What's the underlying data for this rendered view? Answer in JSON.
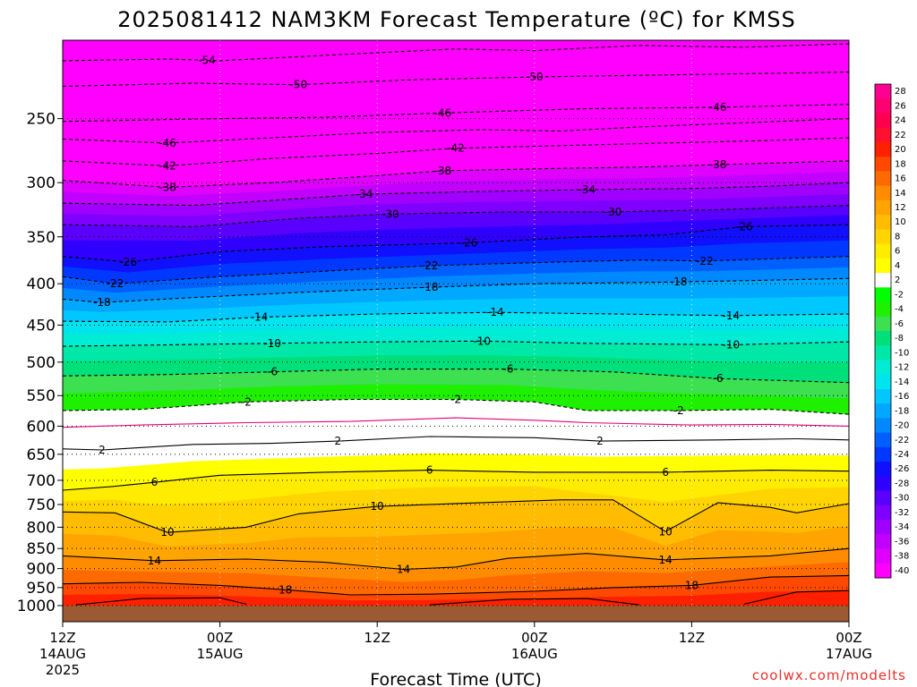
{
  "chart_data": {
    "type": "heatmap",
    "title": "2025081412 NAM3KM Forecast Temperature (ºC) for KMSS",
    "xlabel": "Forecast Time (UTC)",
    "credit": "coolwx.com/modelts",
    "x_ticks": [
      {
        "hour": 0,
        "l1": "12Z",
        "l2": "14AUG",
        "l3": "2025"
      },
      {
        "hour": 12,
        "l1": "00Z",
        "l2": "15AUG",
        "l3": ""
      },
      {
        "hour": 24,
        "l1": "12Z",
        "l2": "",
        "l3": ""
      },
      {
        "hour": 36,
        "l1": "00Z",
        "l2": "16AUG",
        "l3": ""
      },
      {
        "hour": 48,
        "l1": "12Z",
        "l2": "",
        "l3": ""
      },
      {
        "hour": 60,
        "l1": "00Z",
        "l2": "17AUG",
        "l3": ""
      }
    ],
    "x_range_hours": [
      0,
      60
    ],
    "pressure_levels": [
      250,
      300,
      350,
      400,
      450,
      500,
      550,
      600,
      650,
      700,
      750,
      800,
      850,
      900,
      950,
      1000
    ],
    "y_range_hPa": [
      200,
      1000
    ],
    "y_scale": "log-pressure",
    "grid": "dotted",
    "colorbar": {
      "labels": [
        "28",
        "26",
        "24",
        "22",
        "20",
        "18",
        "16",
        "14",
        "12",
        "10",
        "8",
        "6",
        "4",
        "2",
        "-2",
        "-4",
        "-6",
        "-8",
        "-10",
        "-12",
        "-14",
        "-16",
        "-18",
        "-20",
        "-22",
        "-24",
        "-26",
        "-28",
        "-30",
        "-32",
        "-34",
        "-36",
        "-38",
        "-40"
      ],
      "colors": [
        "#ff0090",
        "#ff0070",
        "#ff0050",
        "#ff1030",
        "#ff2000",
        "#ff4800",
        "#ff6a00",
        "#ff8c00",
        "#ffa400",
        "#ffbc00",
        "#ffd400",
        "#ffec00",
        "#ffff00",
        "#ffffff",
        "#00ff00",
        "#1ef000",
        "#3ce050",
        "#00e07a",
        "#00e8a8",
        "#00ecd4",
        "#00e4f0",
        "#00c8ff",
        "#00a8ff",
        "#0088ff",
        "#0060ff",
        "#0038ff",
        "#1010ff",
        "#3000ff",
        "#5a00ff",
        "#8000ff",
        "#a000ff",
        "#c200ff",
        "#e000ff",
        "#ff00ff"
      ]
    },
    "ground_color": "#9b5a32",
    "contours": [
      {
        "label": "-54",
        "dashed": true,
        "label_hours": [
          11
        ],
        "pts": [
          [
            0,
            212
          ],
          [
            8,
            211
          ],
          [
            12,
            212
          ],
          [
            22,
            208
          ],
          [
            30,
            205
          ],
          [
            36,
            206
          ],
          [
            44,
            203
          ],
          [
            52,
            204
          ],
          [
            60,
            202
          ]
        ]
      },
      {
        "label": "-50",
        "dashed": true,
        "label_hours": [
          18,
          36
        ],
        "pts": [
          [
            0,
            228
          ],
          [
            10,
            226
          ],
          [
            18,
            227
          ],
          [
            26,
            224
          ],
          [
            36,
            222
          ],
          [
            44,
            221
          ],
          [
            52,
            220
          ],
          [
            60,
            219
          ]
        ]
      },
      {
        "label": "-46",
        "dashed": true,
        "label_hours": [
          29,
          50
        ],
        "pts": [
          [
            0,
            252
          ],
          [
            12,
            250
          ],
          [
            20,
            249
          ],
          [
            29,
            246
          ],
          [
            40,
            243
          ],
          [
            50,
            242
          ],
          [
            60,
            240
          ]
        ]
      },
      {
        "label": "-46",
        "dashed": true,
        "label_hours": [
          8
        ],
        "pts": [
          [
            0,
            265
          ],
          [
            8,
            268
          ],
          [
            16,
            264
          ],
          [
            24,
            260
          ],
          [
            32,
            258
          ],
          [
            38,
            259
          ],
          [
            44,
            256
          ],
          [
            52,
            253
          ],
          [
            60,
            250
          ]
        ]
      },
      {
        "label": "-42",
        "dashed": true,
        "label_hours": [
          8,
          30
        ],
        "pts": [
          [
            0,
            282
          ],
          [
            8,
            286
          ],
          [
            16,
            280
          ],
          [
            24,
            276
          ],
          [
            30,
            272
          ],
          [
            38,
            270
          ],
          [
            46,
            268
          ],
          [
            54,
            266
          ],
          [
            60,
            264
          ]
        ]
      },
      {
        "label": "-38",
        "dashed": true,
        "label_hours": [
          8,
          29,
          50
        ],
        "pts": [
          [
            0,
            298
          ],
          [
            8,
            304
          ],
          [
            16,
            300
          ],
          [
            24,
            294
          ],
          [
            29,
            290
          ],
          [
            38,
            288
          ],
          [
            44,
            287
          ],
          [
            50,
            285
          ],
          [
            60,
            282
          ]
        ]
      },
      {
        "label": "-34",
        "dashed": true,
        "label_hours": [
          23,
          40
        ],
        "pts": [
          [
            0,
            318
          ],
          [
            10,
            320
          ],
          [
            18,
            314
          ],
          [
            23,
            310
          ],
          [
            30,
            308
          ],
          [
            40,
            306
          ],
          [
            48,
            305
          ],
          [
            54,
            303
          ],
          [
            60,
            300
          ]
        ]
      },
      {
        "label": "-30",
        "dashed": true,
        "label_hours": [
          25,
          42
        ],
        "pts": [
          [
            0,
            338
          ],
          [
            10,
            340
          ],
          [
            18,
            332
          ],
          [
            25,
            328
          ],
          [
            34,
            326
          ],
          [
            42,
            326
          ],
          [
            50,
            324
          ],
          [
            60,
            320
          ]
        ]
      },
      {
        "label": "-26",
        "dashed": true,
        "label_hours": [
          5,
          31,
          52
        ],
        "pts": [
          [
            0,
            370
          ],
          [
            5,
            376
          ],
          [
            12,
            365
          ],
          [
            20,
            360
          ],
          [
            31,
            356
          ],
          [
            40,
            350
          ],
          [
            46,
            348
          ],
          [
            52,
            340
          ],
          [
            60,
            338
          ]
        ]
      },
      {
        "label": "-22",
        "dashed": true,
        "label_hours": [
          4,
          28,
          49
        ],
        "pts": [
          [
            0,
            392
          ],
          [
            4,
            400
          ],
          [
            12,
            392
          ],
          [
            20,
            386
          ],
          [
            28,
            380
          ],
          [
            38,
            376
          ],
          [
            44,
            374
          ],
          [
            49,
            375
          ],
          [
            60,
            370
          ]
        ]
      },
      {
        "label": "-18",
        "dashed": true,
        "label_hours": [
          3,
          28,
          47
        ],
        "pts": [
          [
            0,
            418
          ],
          [
            3,
            422
          ],
          [
            10,
            416
          ],
          [
            18,
            410
          ],
          [
            28,
            404
          ],
          [
            36,
            400
          ],
          [
            47,
            398
          ],
          [
            54,
            396
          ],
          [
            60,
            394
          ]
        ]
      },
      {
        "label": "-14",
        "dashed": true,
        "label_hours": [
          15,
          33,
          51
        ],
        "pts": [
          [
            0,
            445
          ],
          [
            8,
            446
          ],
          [
            15,
            440
          ],
          [
            24,
            436
          ],
          [
            33,
            434
          ],
          [
            42,
            436
          ],
          [
            51,
            438
          ],
          [
            60,
            436
          ]
        ]
      },
      {
        "label": "-10",
        "dashed": true,
        "label_hours": [
          16,
          32,
          51
        ],
        "pts": [
          [
            0,
            478
          ],
          [
            8,
            476
          ],
          [
            16,
            474
          ],
          [
            24,
            472
          ],
          [
            32,
            471
          ],
          [
            40,
            474
          ],
          [
            51,
            476
          ],
          [
            60,
            472
          ]
        ]
      },
      {
        "label": "-6",
        "dashed": true,
        "label_hours": [
          16,
          34,
          50
        ],
        "pts": [
          [
            0,
            520
          ],
          [
            8,
            518
          ],
          [
            16,
            514
          ],
          [
            24,
            510
          ],
          [
            34,
            510
          ],
          [
            42,
            514
          ],
          [
            50,
            524
          ],
          [
            60,
            530
          ]
        ]
      },
      {
        "label": "-2",
        "dashed": true,
        "label_hours": [
          14,
          30,
          47
        ],
        "pts": [
          [
            0,
            574
          ],
          [
            6,
            572
          ],
          [
            14,
            560
          ],
          [
            22,
            556
          ],
          [
            30,
            556
          ],
          [
            36,
            560
          ],
          [
            40,
            574
          ],
          [
            47,
            574
          ],
          [
            54,
            572
          ],
          [
            60,
            580
          ]
        ]
      },
      {
        "label": "",
        "dashed": false,
        "color": "#e4007a",
        "label_hours": [],
        "pts": [
          [
            0,
            602
          ],
          [
            6,
            598
          ],
          [
            14,
            594
          ],
          [
            22,
            592
          ],
          [
            30,
            586
          ],
          [
            36,
            590
          ],
          [
            40,
            594
          ],
          [
            48,
            598
          ],
          [
            54,
            597
          ],
          [
            60,
            600
          ]
        ]
      },
      {
        "label": "2",
        "dashed": false,
        "label_hours": [
          3,
          21,
          41
        ],
        "pts": [
          [
            0,
            640
          ],
          [
            3,
            642
          ],
          [
            10,
            632
          ],
          [
            16,
            630
          ],
          [
            21,
            626
          ],
          [
            28,
            618
          ],
          [
            36,
            620
          ],
          [
            41,
            626
          ],
          [
            50,
            624
          ],
          [
            56,
            622
          ],
          [
            60,
            624
          ]
        ]
      },
      {
        "label": "6",
        "dashed": false,
        "label_hours": [
          7,
          28,
          46
        ],
        "pts": [
          [
            0,
            720
          ],
          [
            4,
            712
          ],
          [
            7,
            704
          ],
          [
            12,
            690
          ],
          [
            20,
            684
          ],
          [
            28,
            680
          ],
          [
            36,
            684
          ],
          [
            46,
            684
          ],
          [
            54,
            680
          ],
          [
            60,
            682
          ]
        ]
      },
      {
        "label": "10",
        "dashed": false,
        "label_hours": [
          8,
          24,
          46
        ],
        "pts": [
          [
            0,
            766
          ],
          [
            4,
            768
          ],
          [
            8,
            812
          ],
          [
            14,
            800
          ],
          [
            18,
            770
          ],
          [
            24,
            754
          ],
          [
            32,
            746
          ],
          [
            38,
            740
          ],
          [
            42,
            740
          ],
          [
            46,
            810
          ],
          [
            50,
            746
          ],
          [
            54,
            756
          ],
          [
            56,
            768
          ],
          [
            60,
            748
          ]
        ]
      },
      {
        "label": "14",
        "dashed": false,
        "label_hours": [
          7,
          26,
          46
        ],
        "pts": [
          [
            0,
            868
          ],
          [
            7,
            880
          ],
          [
            14,
            876
          ],
          [
            20,
            884
          ],
          [
            26,
            902
          ],
          [
            30,
            896
          ],
          [
            34,
            874
          ],
          [
            40,
            862
          ],
          [
            46,
            878
          ],
          [
            54,
            868
          ],
          [
            60,
            850
          ]
        ]
      },
      {
        "label": "18",
        "dashed": false,
        "label_hours": [
          17,
          48
        ],
        "pts": [
          [
            0,
            940
          ],
          [
            6,
            936
          ],
          [
            12,
            944
          ],
          [
            17,
            956
          ],
          [
            22,
            970
          ],
          [
            28,
            968
          ],
          [
            36,
            960
          ],
          [
            42,
            950
          ],
          [
            48,
            944
          ],
          [
            54,
            922
          ],
          [
            60,
            918
          ]
        ]
      },
      {
        "label": "",
        "dashed": false,
        "label_hours": [],
        "pts": [
          [
            1,
            998
          ],
          [
            6,
            980
          ],
          [
            12,
            978
          ],
          [
            14,
            996
          ]
        ]
      },
      {
        "label": "",
        "dashed": false,
        "label_hours": [],
        "pts": [
          [
            28,
            998
          ],
          [
            34,
            982
          ],
          [
            40,
            980
          ],
          [
            44,
            998
          ]
        ]
      },
      {
        "label": "",
        "dashed": false,
        "label_hours": [],
        "pts": [
          [
            52,
            996
          ],
          [
            56,
            962
          ],
          [
            60,
            958
          ]
        ]
      }
    ]
  }
}
